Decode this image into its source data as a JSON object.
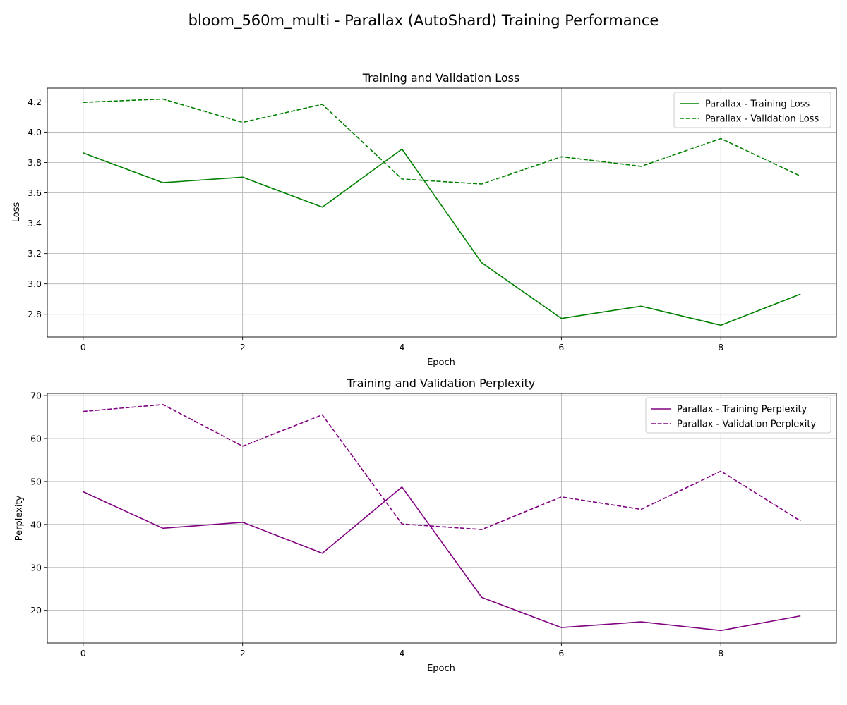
{
  "figure": {
    "title": "bloom_560m_multi - Parallax (AutoShard) Training Performance"
  },
  "chart_data": [
    {
      "type": "line",
      "title": "Training and Validation Loss",
      "xlabel": "Epoch",
      "ylabel": "Loss",
      "x": [
        0,
        1,
        2,
        3,
        4,
        5,
        6,
        7,
        8,
        9
      ],
      "xlim": [
        -0.45,
        9.45
      ],
      "ylim": [
        2.65,
        4.29
      ],
      "xticks": [
        0,
        2,
        4,
        6,
        8
      ],
      "yticks": [
        2.8,
        3.0,
        3.2,
        3.4,
        3.6,
        3.8,
        4.0,
        4.2
      ],
      "ytick_decimals": 1,
      "grid": true,
      "legend_position": "top-right",
      "series": [
        {
          "name": "Parallax - Training Loss",
          "color": "#008000",
          "dash": "solid",
          "values": [
            3.863,
            3.667,
            3.703,
            3.506,
            3.888,
            3.139,
            2.772,
            2.853,
            2.727,
            2.933
          ]
        },
        {
          "name": "Parallax - Validation Loss",
          "color": "#008000",
          "dash": "dashed",
          "values": [
            4.196,
            4.218,
            4.064,
            4.183,
            3.691,
            3.658,
            3.838,
            3.775,
            3.958,
            3.71
          ]
        }
      ]
    },
    {
      "type": "line",
      "title": "Training and Validation Perplexity",
      "xlabel": "Epoch",
      "ylabel": "Perplexity",
      "x": [
        0,
        1,
        2,
        3,
        4,
        5,
        6,
        7,
        8,
        9
      ],
      "xlim": [
        -0.45,
        9.45
      ],
      "ylim": [
        12.4,
        70.5
      ],
      "xticks": [
        0,
        2,
        4,
        6,
        8
      ],
      "yticks": [
        20,
        30,
        40,
        50,
        60,
        70
      ],
      "ytick_decimals": 0,
      "grid": true,
      "legend_position": "top-right",
      "series": [
        {
          "name": "Parallax - Training Perplexity",
          "color": "#800080",
          "dash": "solid",
          "values": [
            47.6,
            39.1,
            40.5,
            33.3,
            48.7,
            23.0,
            16.0,
            17.3,
            15.3,
            18.7
          ]
        },
        {
          "name": "Parallax - Validation Perplexity",
          "color": "#800080",
          "dash": "dashed",
          "values": [
            66.3,
            67.9,
            58.2,
            65.5,
            40.1,
            38.8,
            46.4,
            43.5,
            52.4,
            40.8
          ]
        }
      ]
    }
  ]
}
